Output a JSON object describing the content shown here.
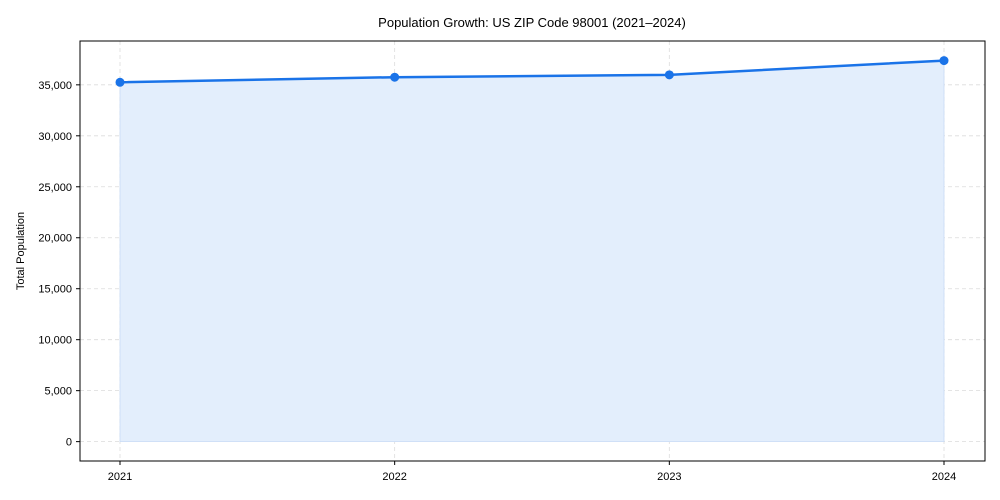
{
  "chart_data": {
    "type": "area",
    "title": "Population Growth: US ZIP Code 98001 (2021–2024)",
    "xlabel": "",
    "ylabel": "Total Population",
    "categories": [
      "2021",
      "2022",
      "2023",
      "2024"
    ],
    "series": [
      {
        "name": "Total Population",
        "values": [
          35250,
          35750,
          35980,
          37380
        ],
        "color": "#1a73e8",
        "fill": "#e3eefc"
      }
    ],
    "ylim": [
      -1900,
      39300
    ],
    "yticks": [
      0,
      5000,
      10000,
      15000,
      20000,
      25000,
      30000,
      35000
    ],
    "ytick_labels": [
      "0",
      "5,000",
      "10,000",
      "15,000",
      "20,000",
      "25,000",
      "30,000",
      "35,000"
    ],
    "grid": true,
    "legend": null
  }
}
